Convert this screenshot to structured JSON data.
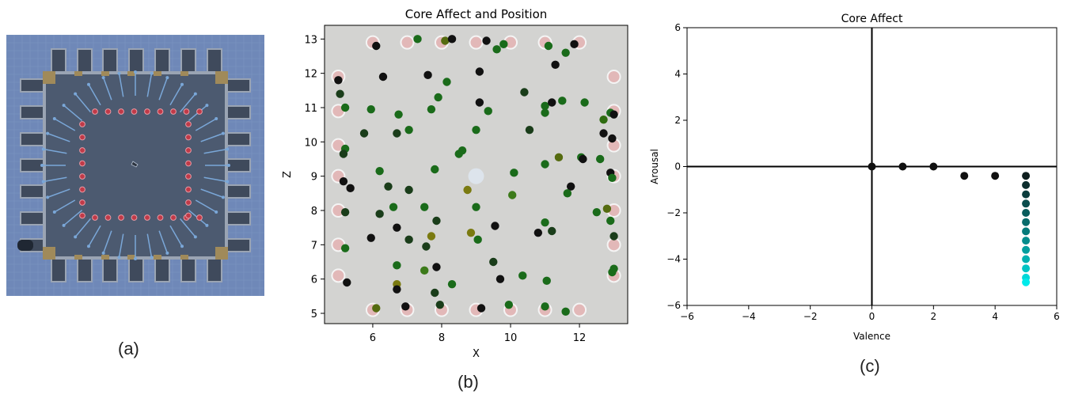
{
  "panel_a": {
    "caption": "(a)",
    "colors": {
      "background": "#6f88b8",
      "floor": "#4c5a70",
      "wall": "#9aa4b3",
      "corner": "#a08a5a",
      "marker": "#c03a48",
      "spoke": "#7aa7d8"
    }
  },
  "panel_b": {
    "caption": "(b)"
  },
  "panel_c": {
    "caption": "(c)"
  },
  "chart_data": [
    {
      "type": "scatter",
      "title": "Core Affect and Position",
      "xlabel": "X",
      "ylabel": "Z",
      "xlim": [
        4.6,
        13.4
      ],
      "ylim": [
        4.7,
        13.4
      ],
      "xticks": [
        6,
        8,
        10,
        12
      ],
      "yticks": [
        5,
        6,
        7,
        8,
        9,
        10,
        11,
        12,
        13
      ],
      "grid": false,
      "background_points": [
        [
          5.0,
          11.9
        ],
        [
          5.0,
          10.9
        ],
        [
          5.0,
          9.9
        ],
        [
          5.0,
          9.0
        ],
        [
          5.0,
          8.0
        ],
        [
          5.0,
          7.0
        ],
        [
          5.0,
          6.1
        ],
        [
          13.0,
          11.9
        ],
        [
          13.0,
          10.9
        ],
        [
          13.0,
          9.9
        ],
        [
          13.0,
          9.0
        ],
        [
          13.0,
          8.0
        ],
        [
          13.0,
          7.0
        ],
        [
          13.0,
          6.1
        ],
        [
          6.0,
          12.9
        ],
        [
          7.0,
          12.9
        ],
        [
          8.0,
          12.9
        ],
        [
          9.0,
          12.9
        ],
        [
          10.0,
          12.9
        ],
        [
          11.0,
          12.9
        ],
        [
          12.0,
          12.9
        ],
        [
          6.0,
          5.1
        ],
        [
          7.0,
          5.1
        ],
        [
          8.0,
          5.1
        ],
        [
          9.0,
          5.1
        ],
        [
          10.0,
          5.1
        ],
        [
          11.0,
          5.1
        ],
        [
          12.0,
          5.1
        ]
      ],
      "points": [
        [
          6.1,
          12.8,
          "#111111"
        ],
        [
          7.3,
          13.0,
          "#1a6b1a"
        ],
        [
          8.1,
          12.95,
          "#556b10"
        ],
        [
          8.3,
          13.0,
          "#111111"
        ],
        [
          9.3,
          12.95,
          "#111111"
        ],
        [
          9.6,
          12.7,
          "#1a6b1a"
        ],
        [
          9.8,
          12.85,
          "#1a6b1a"
        ],
        [
          11.1,
          12.8,
          "#1a6b1a"
        ],
        [
          11.6,
          12.6,
          "#1a6b1a"
        ],
        [
          11.85,
          12.85,
          "#111111"
        ],
        [
          5.0,
          11.8,
          "#111111"
        ],
        [
          5.05,
          11.4,
          "#1a3d1a"
        ],
        [
          6.3,
          11.9,
          "#111111"
        ],
        [
          7.6,
          11.95,
          "#111111"
        ],
        [
          8.15,
          11.75,
          "#1a6b1a"
        ],
        [
          9.1,
          12.05,
          "#111111"
        ],
        [
          11.3,
          12.25,
          "#111111"
        ],
        [
          10.4,
          11.45,
          "#1a3d1a"
        ],
        [
          7.9,
          11.3,
          "#1a6b1a"
        ],
        [
          5.2,
          11.0,
          "#1a6b1a"
        ],
        [
          5.95,
          10.95,
          "#1a6b1a"
        ],
        [
          6.75,
          10.8,
          "#1a6b1a"
        ],
        [
          7.7,
          10.95,
          "#1a6b1a"
        ],
        [
          9.1,
          11.15,
          "#111111"
        ],
        [
          9.35,
          10.9,
          "#1a6b1a"
        ],
        [
          11.0,
          11.05,
          "#1a6b1a"
        ],
        [
          11.2,
          11.15,
          "#111111"
        ],
        [
          11.5,
          11.2,
          "#1a6b1a"
        ],
        [
          12.15,
          11.15,
          "#1a6b1a"
        ],
        [
          11.0,
          10.85,
          "#1a6b1a"
        ],
        [
          12.7,
          10.65,
          "#2e6b10"
        ],
        [
          12.9,
          10.85,
          "#1a6b1a"
        ],
        [
          13.0,
          10.8,
          "#111111"
        ],
        [
          5.75,
          10.25,
          "#1a3d1a"
        ],
        [
          6.7,
          10.25,
          "#1a3d1a"
        ],
        [
          7.05,
          10.35,
          "#1a6b1a"
        ],
        [
          9.0,
          10.35,
          "#1a6b1a"
        ],
        [
          10.55,
          10.35,
          "#1a3d1a"
        ],
        [
          12.7,
          10.25,
          "#111111"
        ],
        [
          12.95,
          10.1,
          "#111111"
        ],
        [
          5.2,
          9.8,
          "#1a6b1a"
        ],
        [
          5.15,
          9.65,
          "#1a3d1a"
        ],
        [
          8.5,
          9.65,
          "#1a6b1a"
        ],
        [
          8.6,
          9.75,
          "#1a6b1a"
        ],
        [
          11.4,
          9.55,
          "#556b10"
        ],
        [
          12.05,
          9.55,
          "#1a6b1a"
        ],
        [
          12.1,
          9.5,
          "#111111"
        ],
        [
          12.6,
          9.5,
          "#1a6b1a"
        ],
        [
          11.0,
          9.35,
          "#1a6b1a"
        ],
        [
          6.2,
          9.15,
          "#1a6b1a"
        ],
        [
          7.8,
          9.2,
          "#1a6b1a"
        ],
        [
          10.1,
          9.1,
          "#1a6b1a"
        ],
        [
          12.9,
          9.1,
          "#111111"
        ],
        [
          12.95,
          8.95,
          "#1a6b1a"
        ],
        [
          5.15,
          8.85,
          "#111111"
        ],
        [
          5.35,
          8.65,
          "#111111"
        ],
        [
          6.45,
          8.7,
          "#1a3d1a"
        ],
        [
          7.05,
          8.6,
          "#1a3d1a"
        ],
        [
          8.75,
          8.6,
          "#7a7a10"
        ],
        [
          10.05,
          8.45,
          "#3c7a1a"
        ],
        [
          11.75,
          8.7,
          "#111111"
        ],
        [
          11.65,
          8.5,
          "#1a6b1a"
        ],
        [
          6.6,
          8.1,
          "#1a6b1a"
        ],
        [
          7.5,
          8.1,
          "#1a6b1a"
        ],
        [
          9.0,
          8.1,
          "#1a6b1a"
        ],
        [
          12.5,
          7.95,
          "#1a6b1a"
        ],
        [
          12.8,
          8.05,
          "#556b10"
        ],
        [
          5.2,
          7.95,
          "#1a3d1a"
        ],
        [
          6.2,
          7.9,
          "#1a3d1a"
        ],
        [
          7.85,
          7.7,
          "#1a3d1a"
        ],
        [
          12.9,
          7.7,
          "#1a6b1a"
        ],
        [
          5.2,
          6.9,
          "#1a6b1a"
        ],
        [
          6.7,
          7.5,
          "#111111"
        ],
        [
          9.55,
          7.55,
          "#111111"
        ],
        [
          11.0,
          7.65,
          "#1a6b1a"
        ],
        [
          10.8,
          7.35,
          "#111111"
        ],
        [
          11.2,
          7.4,
          "#1a3d1a"
        ],
        [
          8.85,
          7.35,
          "#7a7a10"
        ],
        [
          7.7,
          7.25,
          "#7a7a10"
        ],
        [
          5.95,
          7.2,
          "#111111"
        ],
        [
          7.05,
          7.15,
          "#1a3d1a"
        ],
        [
          7.55,
          6.95,
          "#1a3d1a"
        ],
        [
          9.05,
          7.15,
          "#1a6b1a"
        ],
        [
          13.0,
          7.25,
          "#1a3d1a"
        ],
        [
          6.7,
          6.4,
          "#1a6b1a"
        ],
        [
          7.5,
          6.25,
          "#3c7a1a"
        ],
        [
          7.85,
          6.35,
          "#111111"
        ],
        [
          9.5,
          6.5,
          "#1a3d1a"
        ],
        [
          10.35,
          6.1,
          "#1a6b1a"
        ],
        [
          13.0,
          6.3,
          "#1a6b1a"
        ],
        [
          12.95,
          6.2,
          "#1a6b1a"
        ],
        [
          5.25,
          5.9,
          "#111111"
        ],
        [
          6.7,
          5.85,
          "#7a7a10"
        ],
        [
          6.7,
          5.7,
          "#111111"
        ],
        [
          8.3,
          5.85,
          "#1a6b1a"
        ],
        [
          9.7,
          6.0,
          "#111111"
        ],
        [
          11.05,
          5.95,
          "#1a6b1a"
        ],
        [
          7.8,
          5.6,
          "#1a3d1a"
        ],
        [
          6.1,
          5.15,
          "#556b10"
        ],
        [
          6.95,
          5.2,
          "#111111"
        ],
        [
          7.95,
          5.25,
          "#1a3d1a"
        ],
        [
          9.15,
          5.15,
          "#111111"
        ],
        [
          9.95,
          5.25,
          "#1a6b1a"
        ],
        [
          11.0,
          5.2,
          "#1a6b1a"
        ],
        [
          11.6,
          5.05,
          "#1a6b1a"
        ]
      ]
    },
    {
      "type": "scatter",
      "title": "Core Affect",
      "xlabel": "Valence",
      "ylabel": "Arousal",
      "xlim": [
        -6,
        6
      ],
      "ylim": [
        -6,
        6
      ],
      "xticks": [
        -6,
        -4,
        -2,
        0,
        2,
        4,
        6
      ],
      "yticks": [
        -6,
        -4,
        -2,
        0,
        2,
        4,
        6
      ],
      "grid": false,
      "points": [
        [
          0,
          0,
          "#111111"
        ],
        [
          1,
          0,
          "#111111"
        ],
        [
          2,
          0,
          "#111111"
        ],
        [
          3,
          -0.4,
          "#111111"
        ],
        [
          4,
          -0.4,
          "#111111"
        ],
        [
          5,
          -0.4,
          "#0f1f1f"
        ],
        [
          5,
          -0.8,
          "#0d2e2e"
        ],
        [
          5,
          -1.2,
          "#0b3d3d"
        ],
        [
          5,
          -1.6,
          "#0a4d4d"
        ],
        [
          5,
          -2.0,
          "#085c5c"
        ],
        [
          5,
          -2.4,
          "#076b6b"
        ],
        [
          5,
          -2.8,
          "#057a7a"
        ],
        [
          5,
          -3.2,
          "#048c8c"
        ],
        [
          5,
          -3.6,
          "#039e9e"
        ],
        [
          5,
          -4.0,
          "#02b0b0"
        ],
        [
          5,
          -4.4,
          "#01c4c4"
        ],
        [
          5,
          -4.8,
          "#00d8d8"
        ],
        [
          5,
          -5.0,
          "#00eaea"
        ]
      ]
    }
  ]
}
